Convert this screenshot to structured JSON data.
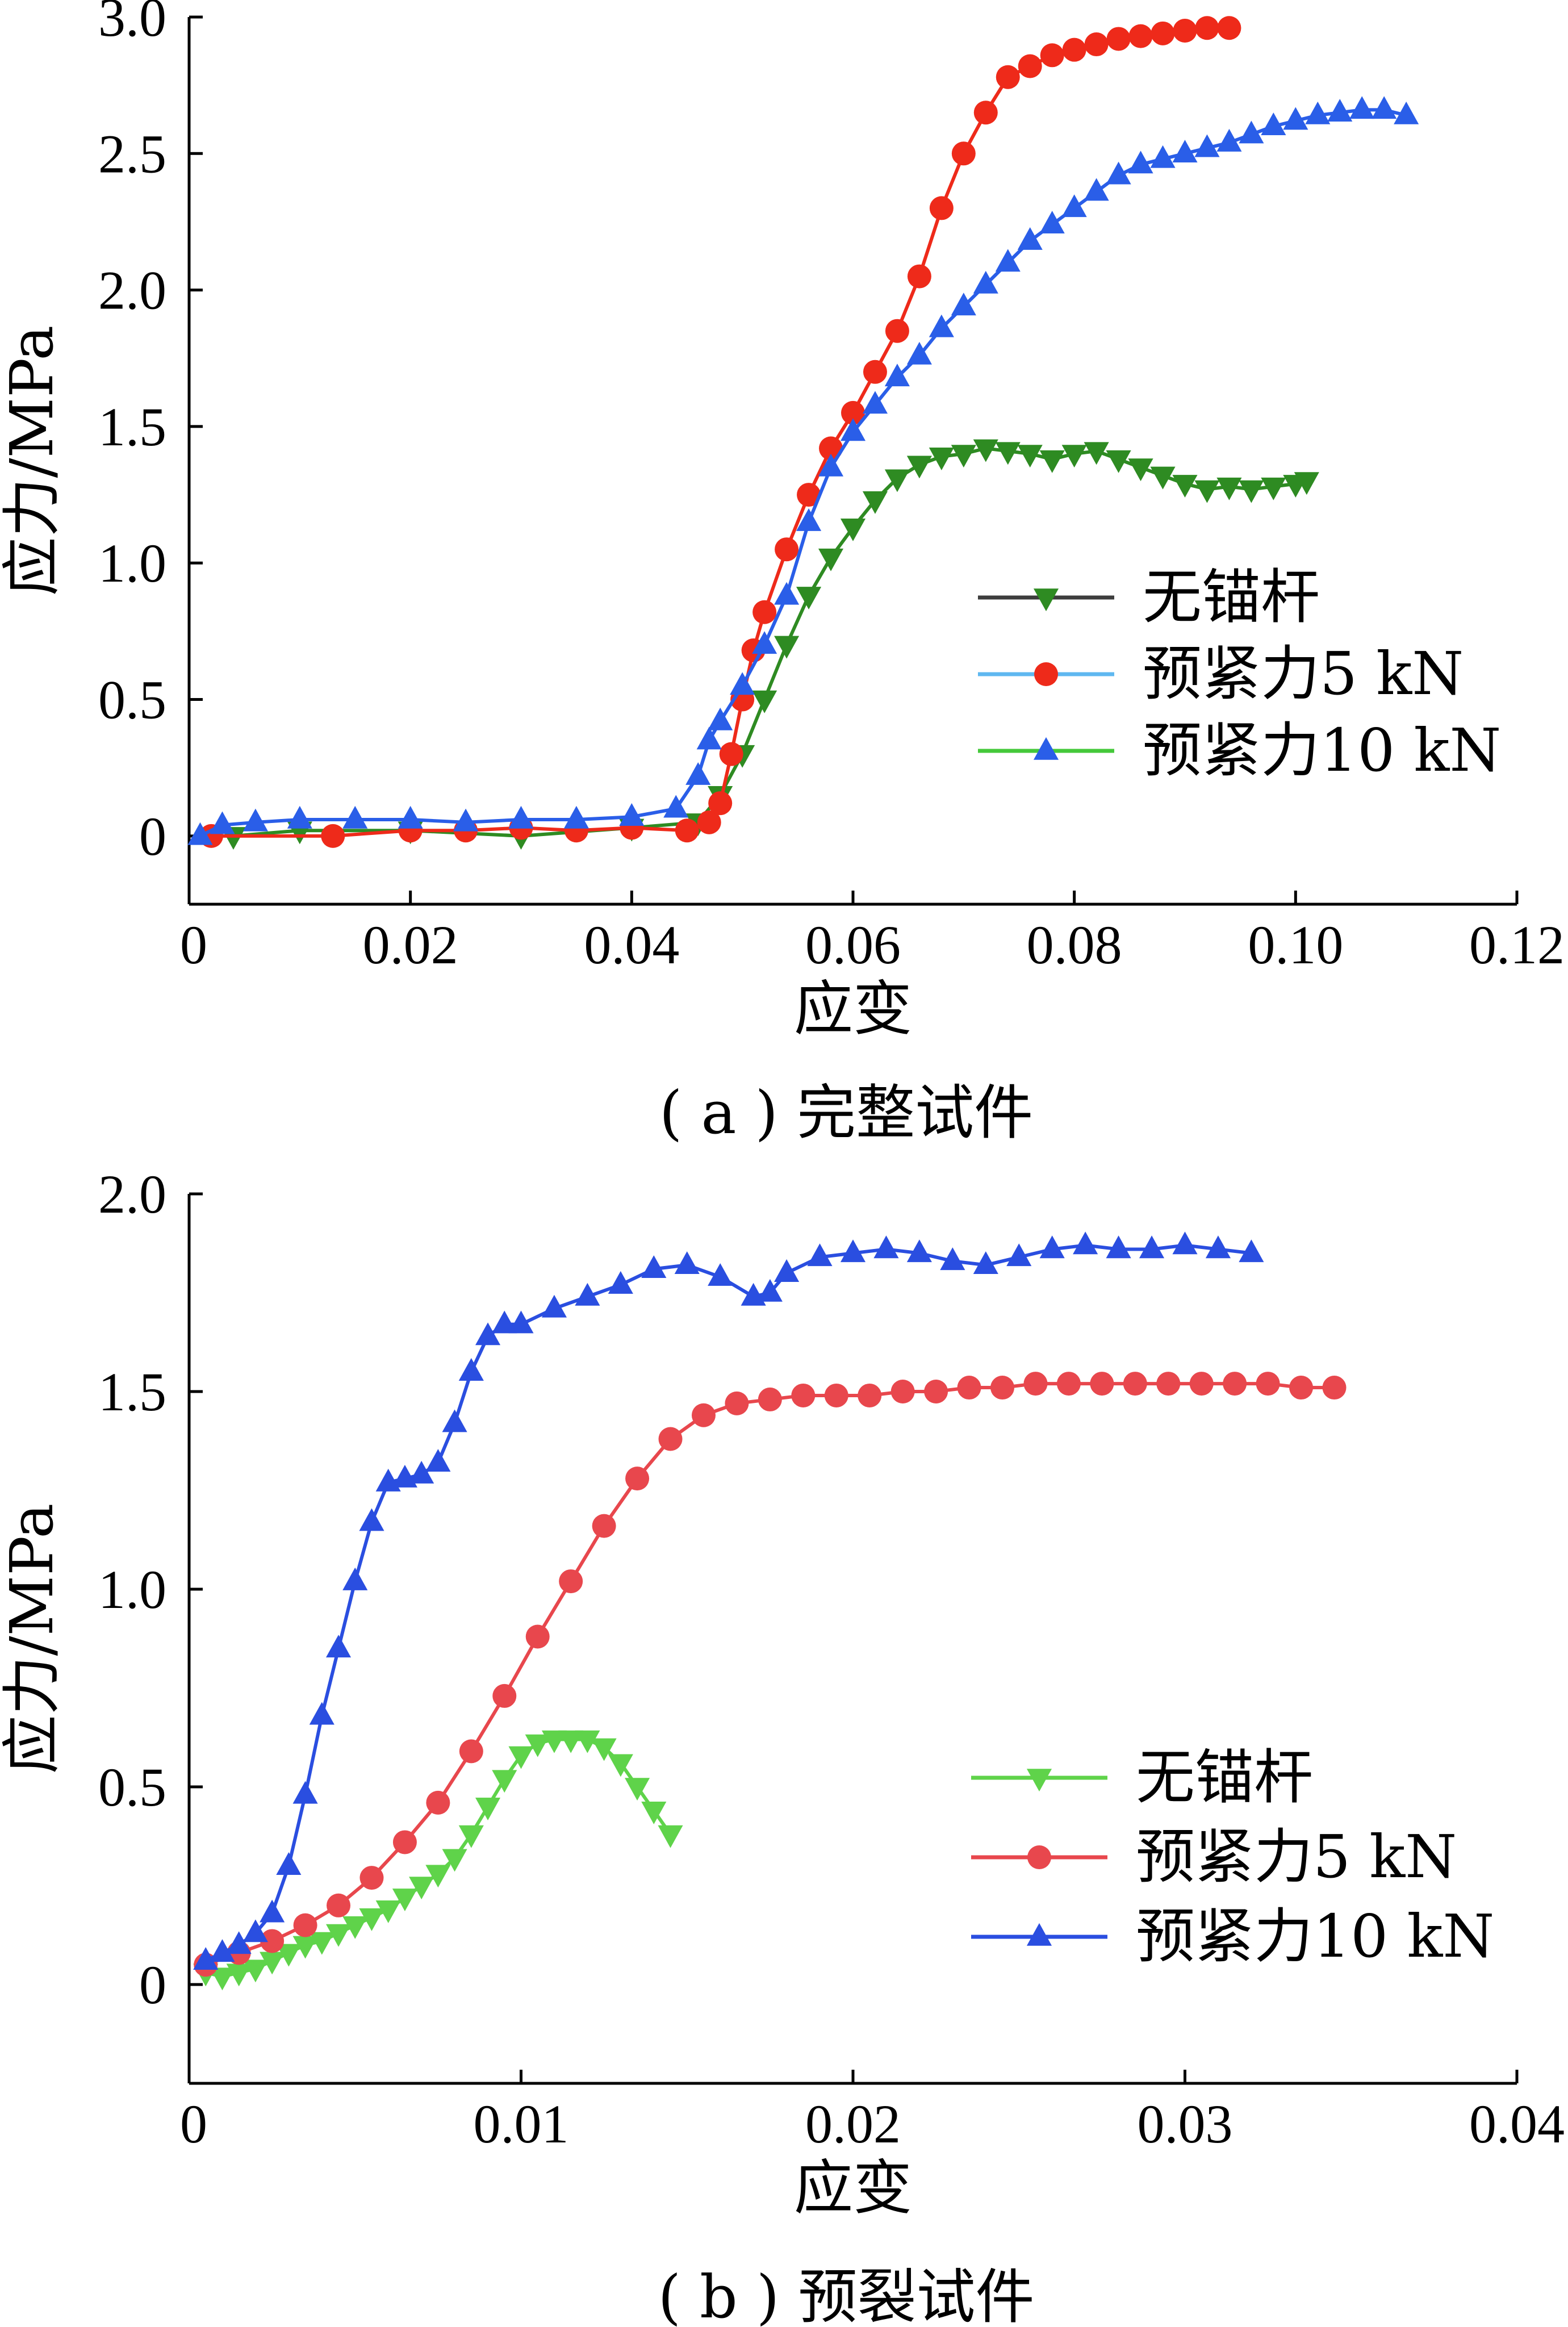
{
  "chart_data": [
    {
      "type": "line",
      "caption": "( a ) 完整试件",
      "xlabel": "应变",
      "ylabel": "应力/MPa",
      "xlim": [
        0,
        0.12
      ],
      "ylim": [
        -0.25,
        3.0
      ],
      "xticks": [
        0,
        0.02,
        0.04,
        0.06,
        0.08,
        0.1,
        0.12
      ],
      "xtick_labels": [
        "0",
        "0.02",
        "0.04",
        "0.06",
        "0.08",
        "0.10",
        "0.12"
      ],
      "yticks": [
        0,
        0.5,
        1.0,
        1.5,
        2.0,
        2.5,
        3.0
      ],
      "ytick_labels": [
        "0",
        "0.5",
        "1.0",
        "1.5",
        "2.0",
        "2.5",
        "3.0"
      ],
      "legend_position": "right",
      "series": [
        {
          "name": "无锚杆",
          "line_color": "#3d3d3d",
          "marker_color": "#2e8b22",
          "marker": "triangle-down",
          "x": [
            0.004,
            0.01,
            0.02,
            0.03,
            0.04,
            0.046,
            0.048,
            0.05,
            0.052,
            0.054,
            0.056,
            0.058,
            0.06,
            0.062,
            0.064,
            0.066,
            0.068,
            0.07,
            0.072,
            0.074,
            0.076,
            0.078,
            0.08,
            0.082,
            0.084,
            0.086,
            0.088,
            0.09,
            0.092,
            0.094,
            0.096,
            0.098,
            0.1,
            0.101
          ],
          "y": [
            0.0,
            0.02,
            0.02,
            0.0,
            0.03,
            0.05,
            0.15,
            0.3,
            0.5,
            0.7,
            0.88,
            1.02,
            1.13,
            1.23,
            1.31,
            1.36,
            1.39,
            1.4,
            1.42,
            1.41,
            1.4,
            1.38,
            1.4,
            1.41,
            1.38,
            1.35,
            1.32,
            1.29,
            1.27,
            1.28,
            1.27,
            1.28,
            1.29,
            1.3
          ]
        },
        {
          "name": "预紧力5 kN",
          "line_color": "#5fb8f0",
          "marker_color": "#ee2a1a",
          "marker": "circle",
          "x": [
            0.002,
            0.013,
            0.02,
            0.025,
            0.03,
            0.035,
            0.04,
            0.045,
            0.047,
            0.048,
            0.049,
            0.05,
            0.051,
            0.052,
            0.054,
            0.056,
            0.058,
            0.06,
            0.062,
            0.064,
            0.066,
            0.068,
            0.07,
            0.072,
            0.074,
            0.076,
            0.078,
            0.08,
            0.082,
            0.084,
            0.086,
            0.088,
            0.09,
            0.092,
            0.094
          ],
          "y": [
            0.0,
            0.0,
            0.02,
            0.02,
            0.03,
            0.02,
            0.03,
            0.02,
            0.05,
            0.12,
            0.3,
            0.5,
            0.68,
            0.82,
            1.05,
            1.25,
            1.42,
            1.55,
            1.7,
            1.85,
            2.05,
            2.3,
            2.5,
            2.65,
            2.78,
            2.82,
            2.86,
            2.88,
            2.9,
            2.92,
            2.93,
            2.94,
            2.95,
            2.96,
            2.96
          ]
        },
        {
          "name": "预紧力10 kN",
          "line_color": "#44c83a",
          "marker_color": "#2a5ee8",
          "marker": "triangle-up",
          "x": [
            0.001,
            0.003,
            0.006,
            0.01,
            0.015,
            0.02,
            0.025,
            0.03,
            0.035,
            0.04,
            0.044,
            0.046,
            0.047,
            0.048,
            0.05,
            0.052,
            0.054,
            0.056,
            0.058,
            0.06,
            0.062,
            0.064,
            0.066,
            0.068,
            0.07,
            0.072,
            0.074,
            0.076,
            0.078,
            0.08,
            0.082,
            0.084,
            0.086,
            0.088,
            0.09,
            0.092,
            0.094,
            0.096,
            0.098,
            0.1,
            0.102,
            0.104,
            0.106,
            0.108,
            0.11
          ],
          "y": [
            0.0,
            0.04,
            0.05,
            0.06,
            0.06,
            0.06,
            0.05,
            0.06,
            0.06,
            0.07,
            0.1,
            0.22,
            0.35,
            0.42,
            0.55,
            0.7,
            0.88,
            1.15,
            1.35,
            1.48,
            1.58,
            1.68,
            1.76,
            1.86,
            1.94,
            2.02,
            2.1,
            2.18,
            2.24,
            2.3,
            2.36,
            2.42,
            2.46,
            2.48,
            2.5,
            2.52,
            2.54,
            2.57,
            2.6,
            2.62,
            2.64,
            2.65,
            2.66,
            2.66,
            2.64
          ]
        }
      ]
    },
    {
      "type": "line",
      "caption": "( b ) 预裂试件",
      "xlabel": "应变",
      "ylabel": "应力/MPa",
      "xlim": [
        0,
        0.04
      ],
      "ylim": [
        -0.25,
        2.0
      ],
      "xticks": [
        0,
        0.01,
        0.02,
        0.03,
        0.04
      ],
      "xtick_labels": [
        "0",
        "0.01",
        "0.02",
        "0.03",
        "0.04"
      ],
      "yticks": [
        0,
        0.5,
        1.0,
        1.5,
        2.0
      ],
      "ytick_labels": [
        "0",
        "0.5",
        "1.0",
        "1.5",
        "2.0"
      ],
      "legend_position": "lower-right",
      "series": [
        {
          "name": "无锚杆",
          "line_color": "#5fd34a",
          "marker_color": "#5fd34a",
          "marker": "triangle-down",
          "x": [
            0.0005,
            0.001,
            0.0015,
            0.002,
            0.0025,
            0.003,
            0.0035,
            0.004,
            0.0045,
            0.005,
            0.0055,
            0.006,
            0.0065,
            0.007,
            0.0075,
            0.008,
            0.0085,
            0.009,
            0.0095,
            0.01,
            0.0105,
            0.011,
            0.0115,
            0.012,
            0.0125,
            0.013,
            0.0135,
            0.014,
            0.0145
          ],
          "y": [
            0.03,
            0.02,
            0.03,
            0.04,
            0.06,
            0.08,
            0.1,
            0.11,
            0.13,
            0.15,
            0.17,
            0.19,
            0.22,
            0.25,
            0.28,
            0.32,
            0.38,
            0.45,
            0.52,
            0.58,
            0.61,
            0.62,
            0.62,
            0.62,
            0.6,
            0.56,
            0.5,
            0.44,
            0.38
          ]
        },
        {
          "name": "预紧力5 kN",
          "line_color": "#e8474d",
          "marker_color": "#e8474d",
          "marker": "circle",
          "x": [
            0.0005,
            0.0015,
            0.0025,
            0.0035,
            0.0045,
            0.0055,
            0.0065,
            0.0075,
            0.0085,
            0.0095,
            0.0105,
            0.0115,
            0.0125,
            0.0135,
            0.0145,
            0.0155,
            0.0165,
            0.0175,
            0.0185,
            0.0195,
            0.0205,
            0.0215,
            0.0225,
            0.0235,
            0.0245,
            0.0255,
            0.0265,
            0.0275,
            0.0285,
            0.0295,
            0.0305,
            0.0315,
            0.0325,
            0.0335,
            0.0345
          ],
          "y": [
            0.05,
            0.08,
            0.11,
            0.15,
            0.2,
            0.27,
            0.36,
            0.46,
            0.59,
            0.73,
            0.88,
            1.02,
            1.16,
            1.28,
            1.38,
            1.44,
            1.47,
            1.48,
            1.49,
            1.49,
            1.49,
            1.5,
            1.5,
            1.51,
            1.51,
            1.52,
            1.52,
            1.52,
            1.52,
            1.52,
            1.52,
            1.52,
            1.52,
            1.51,
            1.51
          ]
        },
        {
          "name": "预紧力10 kN",
          "line_color": "#2a4ee0",
          "marker_color": "#2a4ee0",
          "marker": "triangle-up",
          "x": [
            0.0005,
            0.001,
            0.0015,
            0.002,
            0.0025,
            0.003,
            0.0035,
            0.004,
            0.0045,
            0.005,
            0.0055,
            0.006,
            0.0065,
            0.007,
            0.0075,
            0.008,
            0.0085,
            0.009,
            0.0095,
            0.01,
            0.011,
            0.012,
            0.013,
            0.014,
            0.015,
            0.016,
            0.017,
            0.0175,
            0.018,
            0.019,
            0.02,
            0.021,
            0.022,
            0.023,
            0.024,
            0.025,
            0.026,
            0.027,
            0.028,
            0.029,
            0.03,
            0.031,
            0.032
          ],
          "y": [
            0.06,
            0.08,
            0.1,
            0.13,
            0.18,
            0.3,
            0.48,
            0.68,
            0.85,
            1.02,
            1.17,
            1.27,
            1.28,
            1.29,
            1.32,
            1.42,
            1.55,
            1.64,
            1.67,
            1.67,
            1.71,
            1.74,
            1.77,
            1.81,
            1.82,
            1.79,
            1.74,
            1.75,
            1.8,
            1.84,
            1.85,
            1.86,
            1.85,
            1.83,
            1.82,
            1.84,
            1.86,
            1.87,
            1.86,
            1.86,
            1.87,
            1.86,
            1.85
          ]
        }
      ]
    }
  ]
}
